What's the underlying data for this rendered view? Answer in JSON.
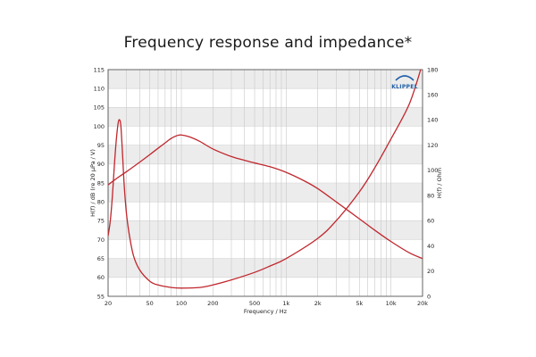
{
  "chart_data": {
    "type": "line",
    "title": "Frequency response and impedance*",
    "xlabel": "Frequency / Hz",
    "ylabel_left": "H(f) / dB (re 20 µPa / V)",
    "ylabel_right": "H(f) / Ohm",
    "xscale": "log",
    "xlim": [
      20,
      20000
    ],
    "ylim_left": [
      55,
      115
    ],
    "ylim_right": [
      0,
      180
    ],
    "x_ticks": [
      20,
      50,
      100,
      200,
      500,
      1000,
      2000,
      5000,
      10000,
      20000
    ],
    "x_tick_labels": [
      "20",
      "50",
      "100",
      "200",
      "500",
      "1k",
      "2k",
      "5k",
      "10k",
      "20k"
    ],
    "y_left_ticks": [
      55,
      60,
      65,
      70,
      75,
      80,
      85,
      90,
      95,
      100,
      105,
      110,
      115
    ],
    "y_left_tick_labels": [
      "55",
      "60",
      "65",
      "70",
      "75",
      "80",
      "85",
      "90",
      "95",
      "100",
      "105",
      "110",
      "115"
    ],
    "y_right_ticks": [
      0,
      20,
      40,
      60,
      80,
      100,
      120,
      140,
      160,
      180
    ],
    "y_right_tick_labels": [
      "0",
      "20",
      "40",
      "60",
      "80",
      "100",
      "120",
      "140",
      "160",
      "180"
    ],
    "grid": true,
    "logo": "KLIPPEL",
    "series": [
      {
        "name": "Frequency response",
        "axis": "left",
        "color": "#c0272d",
        "x": [
          20,
          25,
          30,
          40,
          50,
          60,
          70,
          80,
          90,
          100,
          120,
          150,
          200,
          300,
          400,
          500,
          700,
          1000,
          1500,
          2000,
          3000,
          5000,
          7000,
          10000,
          15000,
          20000
        ],
        "y": [
          84.5,
          86.5,
          88,
          90.5,
          92.5,
          94.2,
          95.6,
          96.8,
          97.5,
          97.7,
          97.2,
          96,
          94,
          92,
          91,
          90.3,
          89.3,
          87.8,
          85.5,
          83.5,
          80,
          75.5,
          72.5,
          69.5,
          66.5,
          65
        ]
      },
      {
        "name": "Impedance",
        "axis": "right",
        "color": "#c0272d",
        "x": [
          20,
          21,
          22,
          23,
          24,
          25,
          25.8,
          26.5,
          27.5,
          28.5,
          30,
          32,
          35,
          40,
          50,
          60,
          80,
          100,
          150,
          200,
          300,
          500,
          700,
          1000,
          2000,
          3000,
          5000,
          7000,
          10000,
          15000,
          20000
        ],
        "y": [
          48,
          60,
          80,
          105,
          125,
          138,
          140,
          135,
          112,
          88,
          65,
          48,
          32,
          21,
          12,
          9,
          7,
          6.5,
          7,
          9,
          13,
          19,
          24,
          30,
          46,
          60,
          83,
          102,
          125,
          153,
          185
        ]
      }
    ]
  }
}
